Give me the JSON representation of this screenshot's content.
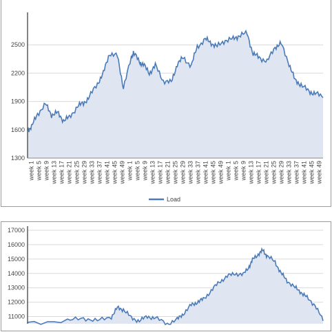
{
  "chart_data": [
    {
      "type": "area",
      "ylim": [
        1300,
        2800
      ],
      "y_ticks": [
        1300,
        1600,
        1900,
        2200,
        2500
      ],
      "x_tick_labels": [
        "week 1",
        "week 5",
        "week 9",
        "week 13",
        "week 17",
        "week 21",
        "week 25",
        "week 29",
        "week 33",
        "week 37",
        "week 41",
        "week 45",
        "week 49",
        "week 1",
        "week 5",
        "week 9",
        "week 13",
        "week 17",
        "week 21",
        "week 25",
        "week 29",
        "week 33",
        "week 37",
        "week 41",
        "week 45",
        "week 49",
        "week 1",
        "week 5",
        "week 9",
        "week 13",
        "week 17",
        "week 21",
        "week 25",
        "week 29",
        "week 33",
        "week 37",
        "week 41",
        "week 45",
        "week 49"
      ],
      "grid": true,
      "legend_position": "bottom",
      "colors": {
        "line": "#4a7ab8",
        "fill": "#dfe6f1"
      },
      "series": [
        {
          "name": "Load",
          "x_week_index": [
            0,
            2,
            5,
            9,
            12,
            15,
            18,
            21,
            25,
            28,
            31,
            35,
            38,
            41,
            45,
            48,
            52,
            53,
            56,
            58,
            61,
            64,
            68,
            72,
            75,
            78,
            82,
            85,
            89,
            92,
            95,
            99,
            103,
            106,
            110,
            113,
            116,
            120,
            124,
            127,
            131,
            134,
            137,
            141,
            144,
            148
          ],
          "values": [
            1600,
            1630,
            1770,
            1870,
            1760,
            1780,
            1700,
            1730,
            1850,
            1880,
            1950,
            2090,
            2200,
            2410,
            2380,
            2050,
            2360,
            2420,
            2320,
            2290,
            2200,
            2280,
            2120,
            2100,
            2300,
            2360,
            2280,
            2480,
            2560,
            2520,
            2480,
            2550,
            2560,
            2600,
            2620,
            2400,
            2370,
            2320,
            2480,
            2510,
            2300,
            2120,
            2080,
            2000,
            1990,
            1940
          ]
        }
      ]
    },
    {
      "type": "area",
      "ylim": [
        10500,
        17000
      ],
      "y_ticks": [
        11000,
        12000,
        13000,
        14000,
        15000,
        16000,
        17000
      ],
      "grid": true,
      "colors": {
        "line": "#4a7ab8",
        "fill": "#dfe6f1"
      },
      "series": [
        {
          "x_week_index": [
            0,
            20,
            28,
            35,
            42,
            45,
            48,
            52,
            56,
            60,
            64,
            70,
            75,
            78,
            82,
            85,
            88,
            92,
            96,
            100,
            104,
            108,
            111,
            113,
            116,
            118,
            120,
            124,
            127,
            130,
            134,
            137,
            140,
            144,
            148
          ],
          "values": [
            10600,
            10700,
            10900,
            10700,
            11000,
            11600,
            11500,
            10900,
            10700,
            11000,
            10900,
            10500,
            10800,
            11200,
            11800,
            12000,
            12200,
            12800,
            13400,
            13800,
            14000,
            13900,
            14500,
            15000,
            15400,
            15600,
            15200,
            14800,
            14000,
            13500,
            13000,
            12700,
            12300,
            11800,
            10700
          ]
        }
      ]
    }
  ]
}
